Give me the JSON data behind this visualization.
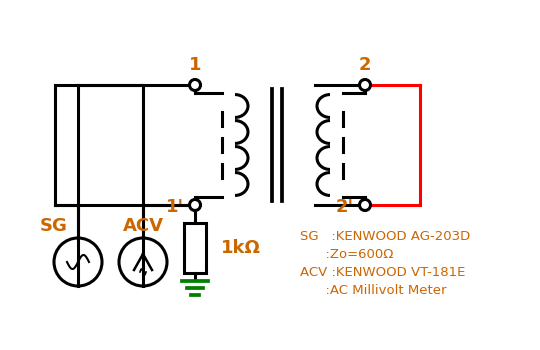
{
  "bg_color": "#ffffff",
  "line_color": "#000000",
  "red_color": "#ff0000",
  "green_color": "#008000",
  "orange_color": "#cc6600",
  "label_1": "1",
  "label_1p": "1'",
  "label_2": "2",
  "label_2p": "2'",
  "label_SG": "SG",
  "label_ACV": "ACV",
  "label_1kohm": "1kΩ",
  "info_line1": "SG   :KENWOOD AG-203D",
  "info_line2": "      :Zo=600Ω",
  "info_line3": "ACV :KENWOOD VT-181E",
  "info_line4": "      :AC Millivolt Meter"
}
